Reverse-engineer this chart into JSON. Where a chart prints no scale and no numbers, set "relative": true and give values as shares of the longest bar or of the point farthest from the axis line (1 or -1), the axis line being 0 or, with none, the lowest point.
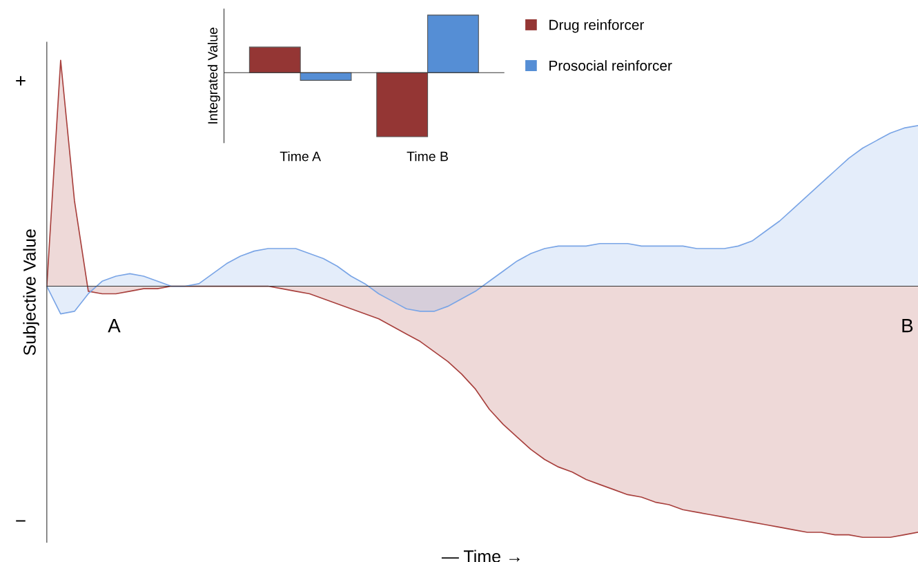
{
  "chart_data": [
    {
      "type": "area",
      "relative": true,
      "xlabel": "— Time →",
      "ylabel": "Subjective Value",
      "categories": [
        null,
        null,
        null,
        null,
        null,
        null,
        null,
        null,
        null,
        null,
        null,
        null,
        null,
        null,
        null,
        null,
        null,
        null,
        null,
        null,
        null,
        null,
        null,
        null,
        null,
        null,
        null,
        null,
        null,
        null,
        null,
        null,
        null,
        null,
        null,
        null,
        null,
        null,
        null,
        null,
        null,
        null,
        null,
        null,
        null,
        null,
        null,
        null,
        null,
        null,
        null,
        null,
        null,
        null,
        null,
        null,
        null,
        null,
        null,
        null,
        null,
        null,
        null,
        null
      ],
      "series": [
        {
          "color": "#a8403d",
          "values": [
            0,
            0.9,
            0.34,
            -0.02,
            -0.03,
            -0.03,
            -0.02,
            -0.01,
            -0.01,
            0,
            0,
            0,
            0,
            0,
            0,
            0,
            0,
            -0.01,
            -0.02,
            -0.03,
            -0.05,
            -0.07,
            -0.09,
            -0.11,
            -0.13,
            -0.16,
            -0.19,
            -0.22,
            -0.26,
            -0.3,
            -0.35,
            -0.41,
            -0.49,
            -0.55,
            -0.6,
            -0.65,
            -0.69,
            -0.72,
            -0.74,
            -0.77,
            -0.79,
            -0.81,
            -0.83,
            -0.84,
            -0.86,
            -0.87,
            -0.89,
            -0.9,
            -0.91,
            -0.92,
            -0.93,
            -0.94,
            -0.95,
            -0.96,
            -0.97,
            -0.98,
            -0.98,
            -0.99,
            -0.99,
            -1,
            -1,
            -1,
            -0.99,
            -0.98
          ]
        },
        {
          "color": "#7aa5e6",
          "values": [
            0,
            -0.11,
            -0.1,
            -0.03,
            0.02,
            0.04,
            0.05,
            0.04,
            0.02,
            0,
            0,
            0.01,
            0.05,
            0.09,
            0.12,
            0.14,
            0.15,
            0.15,
            0.15,
            0.13,
            0.11,
            0.08,
            0.04,
            0.01,
            -0.03,
            -0.06,
            -0.09,
            -0.1,
            -0.1,
            -0.08,
            -0.05,
            -0.02,
            0.02,
            0.06,
            0.1,
            0.13,
            0.15,
            0.16,
            0.16,
            0.16,
            0.17,
            0.17,
            0.17,
            0.16,
            0.16,
            0.16,
            0.16,
            0.15,
            0.15,
            0.15,
            0.16,
            0.18,
            0.22,
            0.26,
            0.31,
            0.36,
            0.41,
            0.46,
            0.51,
            0.55,
            0.58,
            0.61,
            0.63,
            0.64
          ]
        }
      ],
      "annotations": [
        "+",
        "−",
        "A",
        "B"
      ]
    },
    {
      "type": "bar",
      "relative": true,
      "ylabel": "Integrated Value",
      "categories": [
        "Time A",
        "Time B"
      ],
      "legend": "right",
      "series": [
        {
          "name": "Drug reinforcer",
          "color": "#943634",
          "values": [
            0.4,
            -1
          ]
        },
        {
          "name": "Prosocial reinforcer",
          "color": "#558ed5",
          "values": [
            -0.12,
            0.9
          ]
        }
      ]
    }
  ]
}
